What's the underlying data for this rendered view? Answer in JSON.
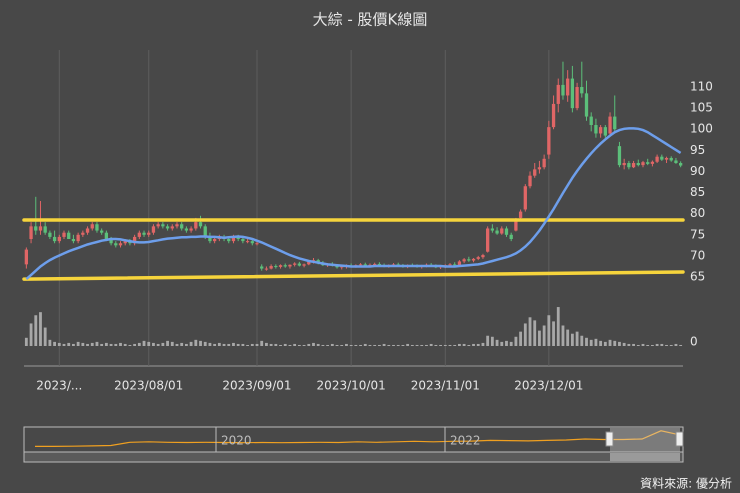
{
  "chart_data": {
    "type": "candlestick",
    "title": "大綜 - 股價K線圖",
    "source": "資料來源: 優分析",
    "up_color": "#e06666",
    "down_color": "#5cbf7a",
    "volume_color": "#a8a8a8",
    "ma_color": "#6d9eeb",
    "trend_color": "#f6d43c",
    "grid": true,
    "dates": [
      "2023/06/26",
      "2023/06/27",
      "2023/06/28",
      "2023/06/29",
      "2023/06/30",
      "2023/07/03",
      "2023/07/04",
      "2023/07/05",
      "2023/07/06",
      "2023/07/07",
      "2023/07/10",
      "2023/07/11",
      "2023/07/12",
      "2023/07/13",
      "2023/07/14",
      "2023/07/17",
      "2023/07/18",
      "2023/07/19",
      "2023/07/20",
      "2023/07/21",
      "2023/07/24",
      "2023/07/25",
      "2023/07/26",
      "2023/07/27",
      "2023/07/28",
      "2023/07/31",
      "2023/08/01",
      "2023/08/02",
      "2023/08/03",
      "2023/08/04",
      "2023/08/07",
      "2023/08/08",
      "2023/08/09",
      "2023/08/10",
      "2023/08/11",
      "2023/08/14",
      "2023/08/15",
      "2023/08/16",
      "2023/08/17",
      "2023/08/18",
      "2023/08/21",
      "2023/08/22",
      "2023/08/23",
      "2023/08/24",
      "2023/08/25",
      "2023/08/28",
      "2023/08/29",
      "2023/08/30",
      "2023/08/31",
      "2023/09/01",
      "2023/09/04",
      "2023/09/05",
      "2023/09/06",
      "2023/09/07",
      "2023/09/08",
      "2023/09/11",
      "2023/09/12",
      "2023/09/13",
      "2023/09/14",
      "2023/09/15",
      "2023/09/18",
      "2023/09/19",
      "2023/09/20",
      "2023/09/21",
      "2023/09/22",
      "2023/09/25",
      "2023/09/26",
      "2023/09/27",
      "2023/09/28",
      "2023/10/02",
      "2023/10/03",
      "2023/10/04",
      "2023/10/05",
      "2023/10/06",
      "2023/10/11",
      "2023/10/12",
      "2023/10/13",
      "2023/10/16",
      "2023/10/17",
      "2023/10/18",
      "2023/10/19",
      "2023/10/20",
      "2023/10/23",
      "2023/10/24",
      "2023/10/25",
      "2023/10/26",
      "2023/10/27",
      "2023/10/30",
      "2023/10/31",
      "2023/11/01",
      "2023/11/02",
      "2023/11/03",
      "2023/11/06",
      "2023/11/07",
      "2023/11/08",
      "2023/11/09",
      "2023/11/10",
      "2023/11/13",
      "2023/11/14",
      "2023/11/15",
      "2023/11/16",
      "2023/11/17",
      "2023/11/20",
      "2023/11/21",
      "2023/11/22",
      "2023/11/23",
      "2023/11/24",
      "2023/11/27",
      "2023/11/28",
      "2023/11/29",
      "2023/11/30",
      "2023/12/01",
      "2023/12/04",
      "2023/12/05",
      "2023/12/06",
      "2023/12/07",
      "2023/12/08",
      "2023/12/11",
      "2023/12/12",
      "2023/12/13",
      "2023/12/14",
      "2023/12/15",
      "2023/12/18",
      "2023/12/19",
      "2023/12/20",
      "2023/12/21",
      "2023/12/22",
      "2023/12/25",
      "2023/12/26",
      "2023/12/27",
      "2023/12/28",
      "2023/12/29",
      "2024/01/02",
      "2024/01/03",
      "2024/01/04",
      "2024/01/05",
      "2024/01/08",
      "2024/01/09",
      "2024/01/10",
      "2024/01/11"
    ],
    "ohlc": [
      [
        68,
        72,
        67,
        71.5
      ],
      [
        74,
        78,
        73,
        77
      ],
      [
        77,
        84,
        75,
        76
      ],
      [
        76,
        83,
        75,
        77
      ],
      [
        77,
        78,
        75,
        75.5
      ],
      [
        75.5,
        76,
        74,
        74.5
      ],
      [
        74.5,
        76,
        73,
        73.5
      ],
      [
        73.5,
        75,
        73,
        74.5
      ],
      [
        74.5,
        76,
        74,
        75.5
      ],
      [
        75.5,
        76,
        74,
        74
      ],
      [
        74,
        75,
        73,
        73.5
      ],
      [
        73.5,
        75.5,
        73,
        75
      ],
      [
        75,
        76,
        74.5,
        75.5
      ],
      [
        75.5,
        77,
        75,
        76.5
      ],
      [
        76.5,
        78,
        76,
        77.5
      ],
      [
        77.5,
        78,
        75.5,
        76
      ],
      [
        76,
        76.5,
        75,
        75.5
      ],
      [
        75.5,
        76,
        73.5,
        74
      ],
      [
        74,
        74.5,
        72.5,
        73
      ],
      [
        73,
        73.5,
        72,
        72.5
      ],
      [
        72.5,
        73.5,
        72,
        73
      ],
      [
        73,
        74,
        72.5,
        73.5
      ],
      [
        73.5,
        74,
        72.5,
        73
      ],
      [
        73,
        75,
        72.5,
        74.5
      ],
      [
        74.5,
        76,
        74,
        75.5
      ],
      [
        75.5,
        76,
        74.5,
        75
      ],
      [
        75,
        76,
        74.5,
        75.5
      ],
      [
        75.5,
        77.5,
        75,
        77
      ],
      [
        77,
        78,
        76.5,
        77.5
      ],
      [
        77.5,
        78,
        76.5,
        77
      ],
      [
        77,
        77.5,
        76,
        76.5
      ],
      [
        76.5,
        77.5,
        76,
        77
      ],
      [
        77,
        78,
        76.5,
        77.5
      ],
      [
        77.5,
        78,
        76,
        76.5
      ],
      [
        76.5,
        77,
        75.5,
        76
      ],
      [
        76,
        77,
        75.5,
        76.5
      ],
      [
        76.5,
        79,
        76,
        78
      ],
      [
        78,
        79.5,
        76.5,
        77
      ],
      [
        77,
        77.5,
        74,
        74.5
      ],
      [
        74.5,
        75.5,
        73,
        73.5
      ],
      [
        73.5,
        74.5,
        73,
        74
      ],
      [
        74,
        75,
        73.5,
        74.5
      ],
      [
        74.5,
        75,
        73.5,
        74
      ],
      [
        74,
        74.5,
        73,
        73.5
      ],
      [
        73.5,
        75,
        73,
        74.5
      ],
      [
        74.5,
        75,
        73.5,
        74
      ],
      [
        74,
        74.5,
        73,
        73.5
      ],
      [
        73.5,
        74,
        73,
        73.5
      ],
      [
        73.5,
        74,
        72.5,
        73
      ],
      [
        73,
        73.5,
        72.5,
        73
      ],
      [
        67.5,
        68,
        66.5,
        67
      ],
      [
        67,
        67.5,
        66.5,
        67
      ],
      [
        67,
        68,
        66.8,
        67.6
      ],
      [
        67.6,
        68,
        67,
        67.4
      ],
      [
        67.4,
        68,
        67,
        67.8
      ],
      [
        67.8,
        68.2,
        67.2,
        67.5
      ],
      [
        67.5,
        68,
        67,
        67.9
      ],
      [
        67.9,
        68.5,
        67.5,
        68.2
      ],
      [
        68.2,
        68.6,
        67.5,
        67.7
      ],
      [
        67.7,
        68.2,
        67.3,
        68
      ],
      [
        68,
        69,
        67.8,
        68.6
      ],
      [
        68.6,
        69.5,
        68.2,
        69
      ],
      [
        69,
        69.3,
        68,
        68.3
      ],
      [
        68.3,
        68.8,
        67.6,
        67.8
      ],
      [
        67.8,
        68.3,
        67.4,
        68
      ],
      [
        68,
        68.5,
        67.5,
        67.7
      ],
      [
        67.7,
        68,
        67,
        67.3
      ],
      [
        67.3,
        67.8,
        66.8,
        67.5
      ],
      [
        67.5,
        68,
        67,
        67.7
      ],
      [
        67.7,
        68.2,
        67.3,
        67.5
      ],
      [
        67.5,
        68,
        67.2,
        67.8
      ],
      [
        67.8,
        68.3,
        67.4,
        68
      ],
      [
        68,
        68.4,
        67.5,
        67.6
      ],
      [
        67.6,
        68.2,
        67.3,
        67.9
      ],
      [
        67.9,
        68.4,
        67.6,
        68.1
      ],
      [
        68.1,
        68.5,
        67.6,
        67.8
      ],
      [
        67.8,
        68.2,
        67.3,
        67.6
      ],
      [
        67.6,
        68,
        67.2,
        67.8
      ],
      [
        67.8,
        68.3,
        67.5,
        68
      ],
      [
        68,
        68.4,
        67.6,
        67.7
      ],
      [
        67.7,
        68.1,
        67.2,
        67.5
      ],
      [
        67.5,
        68,
        67.1,
        67.8
      ],
      [
        67.8,
        68.2,
        67.4,
        67.6
      ],
      [
        67.6,
        68,
        67.2,
        67.4
      ],
      [
        67.4,
        67.9,
        67,
        67.7
      ],
      [
        67.7,
        68.2,
        67.3,
        67.9
      ],
      [
        67.9,
        68.3,
        67.5,
        67.6
      ],
      [
        67.6,
        68,
        67.1,
        67.3
      ],
      [
        67.3,
        67.8,
        66.9,
        67.5
      ],
      [
        67.5,
        68,
        67.1,
        67.8
      ],
      [
        67.8,
        68.3,
        67.4,
        68
      ],
      [
        68,
        68.5,
        67.6,
        67.8
      ],
      [
        67.8,
        69,
        67.6,
        68.7
      ],
      [
        68.7,
        69.5,
        68.3,
        69.2
      ],
      [
        69.2,
        69.8,
        68.6,
        68.9
      ],
      [
        68.9,
        69.5,
        68.5,
        69.3
      ],
      [
        69.3,
        70,
        69,
        69.7
      ],
      [
        69.7,
        70.5,
        69.3,
        70.2
      ],
      [
        71,
        77,
        70.8,
        76.5
      ],
      [
        76.5,
        77.5,
        75.5,
        76
      ],
      [
        76,
        76.8,
        75,
        75.3
      ],
      [
        75.3,
        77,
        75,
        76.5
      ],
      [
        76.5,
        77,
        74.5,
        75
      ],
      [
        75,
        75.5,
        73.5,
        74
      ],
      [
        76,
        79,
        75.8,
        78.5
      ],
      [
        79,
        81,
        78.5,
        80.5
      ],
      [
        81,
        87,
        80.5,
        86.5
      ],
      [
        86.5,
        90,
        86,
        89
      ],
      [
        89,
        92,
        88.5,
        90.5
      ],
      [
        90.5,
        92.5,
        89.5,
        91
      ],
      [
        91,
        94,
        90.5,
        93
      ],
      [
        94,
        102,
        93,
        100.5
      ],
      [
        100.5,
        108,
        100,
        106
      ],
      [
        106,
        112,
        104,
        110.5
      ],
      [
        110.5,
        116,
        107,
        108
      ],
      [
        108,
        114,
        106.5,
        112
      ],
      [
        112,
        115,
        104,
        105
      ],
      [
        105,
        111,
        104.5,
        110
      ],
      [
        110,
        116,
        107.5,
        108.5
      ],
      [
        108.5,
        111.5,
        102,
        103
      ],
      [
        103,
        104,
        99.5,
        101
      ],
      [
        101,
        102.5,
        98,
        99
      ],
      [
        99,
        101,
        98,
        100.5
      ],
      [
        100.5,
        101,
        98,
        98.5
      ],
      [
        99,
        104,
        98.5,
        103
      ],
      [
        103,
        108,
        99.5,
        100
      ],
      [
        96,
        97,
        91,
        91.5
      ],
      [
        91.5,
        93,
        90.5,
        92
      ],
      [
        92,
        92.5,
        90.5,
        91
      ],
      [
        91,
        92.5,
        90.8,
        92
      ],
      [
        92,
        92.8,
        91.2,
        91.5
      ],
      [
        91.5,
        92.5,
        91,
        92.2
      ],
      [
        92.2,
        93,
        91.5,
        91.8
      ],
      [
        91.8,
        92.6,
        91.2,
        92.3
      ],
      [
        92.3,
        94,
        92,
        93.5
      ],
      [
        93.5,
        94,
        92.5,
        92.8
      ],
      [
        92.8,
        93.5,
        92,
        93.2
      ],
      [
        93.2,
        93.6,
        92.3,
        92.6
      ],
      [
        92.6,
        93.2,
        91.8,
        92
      ],
      [
        92,
        92.4,
        91,
        91.4
      ]
    ],
    "ma": [
      64.5,
      65.5,
      66.5,
      67.5,
      68.3,
      69,
      69.6,
      70.1,
      70.6,
      71.1,
      71.5,
      71.9,
      72.3,
      72.7,
      73,
      73.3,
      73.6,
      73.8,
      74,
      74,
      73.9,
      73.7,
      73.5,
      73.3,
      73.2,
      73.2,
      73.3,
      73.5,
      73.7,
      73.9,
      74.1,
      74.2,
      74.3,
      74.4,
      74.4,
      74.5,
      74.5,
      74.6,
      74.6,
      74.5,
      74.5,
      74.4,
      74.3,
      74.4,
      74.5,
      74.6,
      74.5,
      74.3,
      74,
      73.6,
      73.2,
      72.7,
      72.2,
      71.7,
      71.2,
      70.7,
      70.2,
      69.8,
      69.4,
      69.1,
      68.8,
      68.6,
      68.4,
      68.2,
      68,
      67.9,
      67.8,
      67.7,
      67.6,
      67.5,
      67.5,
      67.5,
      67.5,
      67.5,
      67.6,
      67.6,
      67.6,
      67.6,
      67.6,
      67.6,
      67.6,
      67.6,
      67.6,
      67.6,
      67.6,
      67.6,
      67.6,
      67.6,
      67.6,
      67.5,
      67.5,
      67.5,
      67.6,
      67.7,
      67.8,
      67.9,
      68,
      68.2,
      68.5,
      68.8,
      69.1,
      69.4,
      69.7,
      70.1,
      70.6,
      71.3,
      72.2,
      73.3,
      74.6,
      76,
      77.6,
      79.3,
      81.1,
      83,
      84.9,
      86.7,
      88.5,
      90.1,
      91.6,
      93,
      94.3,
      95.5,
      96.6,
      97.6,
      98.5,
      99.3,
      99.8,
      100.1,
      100.2,
      100.2,
      100.1,
      99.8,
      99.3,
      98.6,
      97.9,
      97.2,
      96.5,
      95.8,
      95.1,
      94.4
    ],
    "volume": [
      8,
      22,
      30,
      33,
      18,
      6,
      4,
      3,
      2,
      3,
      2,
      4,
      3,
      2,
      3,
      4,
      2,
      3,
      2,
      2,
      3,
      2,
      1,
      2,
      3,
      5,
      4,
      3,
      2,
      3,
      5,
      4,
      2,
      3,
      2,
      4,
      6,
      5,
      4,
      3,
      2,
      3,
      2,
      2,
      3,
      2,
      2,
      1,
      2,
      2,
      5,
      3,
      2,
      2,
      1,
      2,
      1,
      2,
      1,
      1,
      2,
      3,
      2,
      1,
      1,
      2,
      1,
      1,
      2,
      1,
      1,
      1,
      2,
      1,
      1,
      1,
      2,
      1,
      1,
      1,
      1,
      2,
      1,
      1,
      1,
      1,
      2,
      1,
      1,
      1,
      1,
      1,
      2,
      2,
      1,
      2,
      2,
      3,
      10,
      9,
      6,
      4,
      5,
      4,
      9,
      14,
      22,
      28,
      25,
      15,
      20,
      30,
      24,
      38,
      20,
      16,
      12,
      14,
      10,
      8,
      6,
      7,
      5,
      4,
      6,
      5,
      4,
      3,
      2,
      2,
      1,
      2,
      1,
      1,
      2,
      2,
      1,
      1,
      2,
      1
    ],
    "trendlines": [
      {
        "start": 78.5,
        "end": 78.5
      },
      {
        "start": 64.5,
        "end": 66.2
      }
    ],
    "ylim": [
      62.4,
      116.4
    ],
    "yticks": [
      65,
      70,
      75,
      80,
      85,
      90,
      95,
      100,
      105,
      110
    ],
    "vlim": [
      0,
      40
    ],
    "vticks": [
      0
    ],
    "xticks": [
      {
        "value": "2023/07/05",
        "label": "2023/..."
      },
      {
        "value": "2023/08/01",
        "label": "2023/08/01"
      },
      {
        "value": "2023/09/01",
        "label": "2023/09/01"
      },
      {
        "value": "2023/10/02",
        "label": "2023/10/01"
      },
      {
        "value": "2023/11/01",
        "label": "2023/11/01"
      },
      {
        "value": "2023/12/01",
        "label": "2023/12/01"
      }
    ],
    "navigator": {
      "labels": [
        "2020",
        "2022"
      ],
      "ylim": [
        20,
        120
      ],
      "color": "#f0a020",
      "values": [
        40,
        40,
        41,
        42,
        44,
        58,
        60,
        58,
        57,
        58,
        57,
        56,
        57,
        56,
        57,
        58,
        57,
        60,
        58,
        60,
        62,
        60,
        62,
        63,
        66,
        65,
        64,
        66,
        68,
        72,
        70,
        70,
        72,
        108,
        90
      ]
    }
  }
}
